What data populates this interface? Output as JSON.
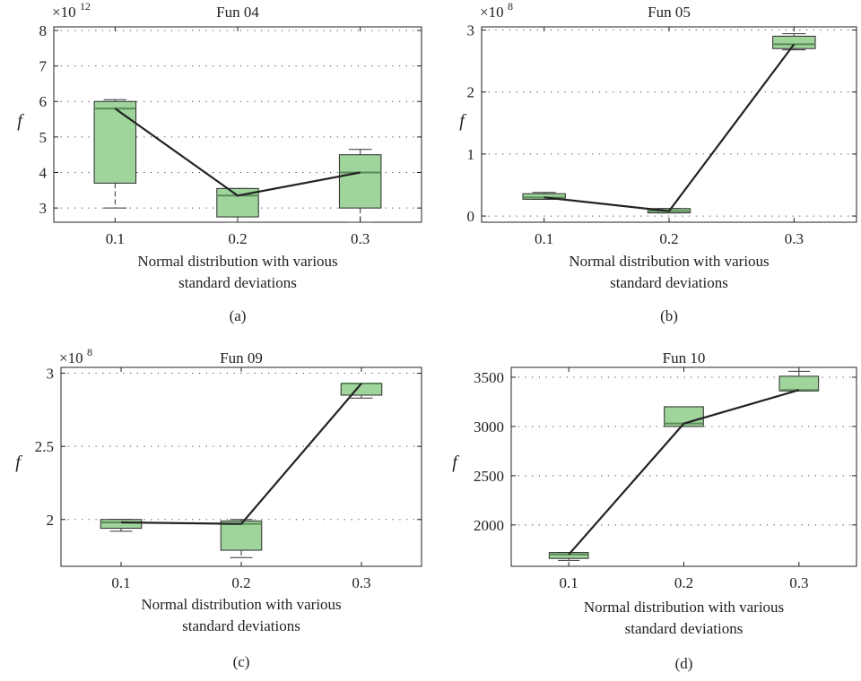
{
  "chart_data": [
    {
      "type": "box",
      "title": "Fun 04",
      "ylabel": "f",
      "scale_label": "×10",
      "scale_exp": "12",
      "xlabel_lines": [
        "Normal distribution with various",
        "standard deviations"
      ],
      "caption": "(a)",
      "categories": [
        "0.1",
        "0.2",
        "0.3"
      ],
      "ylim": [
        2.6,
        8.1
      ],
      "yticks": [
        3,
        4,
        5,
        6,
        7,
        8
      ],
      "ytick_labels": [
        "3",
        "4",
        "5",
        "6",
        "7",
        "8"
      ],
      "grid": true,
      "boxes": [
        {
          "whisker_low": 3.0,
          "q1": 3.7,
          "median": 5.8,
          "q3": 6.0,
          "whisker_high": 6.05
        },
        {
          "whisker_low": 2.6,
          "q1": 2.75,
          "median": 3.35,
          "q3": 3.55,
          "whisker_high": 3.55
        },
        {
          "whisker_low": 2.6,
          "q1": 3.0,
          "median": 4.0,
          "q3": 4.5,
          "whisker_high": 4.65
        }
      ]
    },
    {
      "type": "box",
      "title": "Fun 05",
      "ylabel": "f",
      "scale_label": "×10",
      "scale_exp": "8",
      "xlabel_lines": [
        "Normal distribution with various",
        "standard deviations"
      ],
      "caption": "(b)",
      "categories": [
        "0.1",
        "0.2",
        "0.3"
      ],
      "ylim": [
        -0.1,
        3.05
      ],
      "yticks": [
        0,
        1,
        2,
        3
      ],
      "ytick_labels": [
        "0",
        "1",
        "2",
        "3"
      ],
      "grid": true,
      "boxes": [
        {
          "whisker_low": 0.27,
          "q1": 0.27,
          "median": 0.3,
          "q3": 0.36,
          "whisker_high": 0.38
        },
        {
          "whisker_low": 0.05,
          "q1": 0.05,
          "median": 0.08,
          "q3": 0.12,
          "whisker_high": 0.12
        },
        {
          "whisker_low": 2.68,
          "q1": 2.7,
          "median": 2.77,
          "q3": 2.9,
          "whisker_high": 2.94
        }
      ]
    },
    {
      "type": "box",
      "title": "Fun 09",
      "ylabel": "f",
      "scale_label": "×10",
      "scale_exp": "8",
      "xlabel_lines": [
        "Normal distribution with various",
        "standard deviations"
      ],
      "caption": "(c)",
      "categories": [
        "0.1",
        "0.2",
        "0.3"
      ],
      "ylim": [
        1.68,
        3.04
      ],
      "yticks": [
        2,
        2.5,
        3
      ],
      "ytick_labels": [
        "2",
        "2.5",
        "3"
      ],
      "grid": true,
      "boxes": [
        {
          "whisker_low": 1.92,
          "q1": 1.94,
          "median": 1.98,
          "q3": 2.0,
          "whisker_high": 2.0
        },
        {
          "whisker_low": 1.74,
          "q1": 1.79,
          "median": 1.97,
          "q3": 1.99,
          "whisker_high": 2.0
        },
        {
          "whisker_low": 2.83,
          "q1": 2.85,
          "median": 2.93,
          "q3": 2.93,
          "whisker_high": 2.93
        }
      ]
    },
    {
      "type": "box",
      "title": "Fun 10",
      "ylabel": "f",
      "scale_label": "",
      "scale_exp": "",
      "xlabel_lines": [
        "Normal distribution with various",
        "standard deviations"
      ],
      "caption": "(d)",
      "categories": [
        "0.1",
        "0.2",
        "0.3"
      ],
      "ylim": [
        1580,
        3600
      ],
      "yticks": [
        2000,
        2500,
        3000,
        3500
      ],
      "ytick_labels": [
        "2000",
        "2500",
        "3000",
        "3500"
      ],
      "grid": true,
      "boxes": [
        {
          "whisker_low": 1640,
          "q1": 1660,
          "median": 1700,
          "q3": 1720,
          "whisker_high": 1720
        },
        {
          "whisker_low": 3000,
          "q1": 3000,
          "median": 3030,
          "q3": 3200,
          "whisker_high": 3200
        },
        {
          "whisker_low": 3360,
          "q1": 3360,
          "median": 3370,
          "q3": 3510,
          "whisker_high": 3560
        }
      ]
    }
  ]
}
